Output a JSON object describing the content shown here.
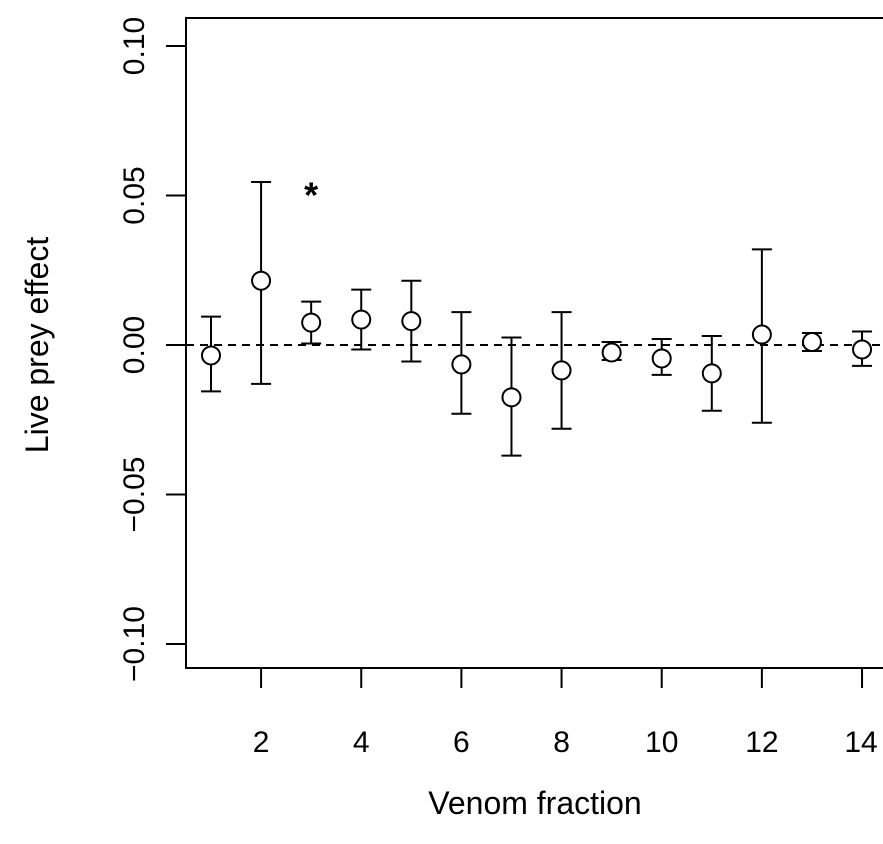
{
  "chart_data": {
    "type": "scatter",
    "title": "",
    "xlabel": "Venom fraction",
    "ylabel": "Live prey effect",
    "xlim": [
      1,
      14
    ],
    "ylim": [
      -0.1,
      0.1
    ],
    "x_ticks": [
      2,
      4,
      6,
      8,
      10,
      12,
      14
    ],
    "y_ticks": [
      -0.1,
      -0.05,
      0.0,
      0.05,
      0.1
    ],
    "x_tick_labels": [
      "2",
      "4",
      "6",
      "8",
      "10",
      "12",
      "14"
    ],
    "y_tick_labels": [
      "−0.10",
      "−0.05",
      "0.00",
      "0.05",
      "0.10"
    ],
    "reference_line": {
      "y": 0.0,
      "style": "dashed"
    },
    "grid": false,
    "points": [
      {
        "x": 1,
        "y": -0.0035,
        "lower": -0.0155,
        "upper": 0.0095
      },
      {
        "x": 2,
        "y": 0.0215,
        "lower": -0.013,
        "upper": 0.0545
      },
      {
        "x": 3,
        "y": 0.0075,
        "lower": 0.0005,
        "upper": 0.0145,
        "annotation": "*"
      },
      {
        "x": 4,
        "y": 0.0085,
        "lower": -0.0015,
        "upper": 0.0185
      },
      {
        "x": 5,
        "y": 0.008,
        "lower": -0.0055,
        "upper": 0.0215
      },
      {
        "x": 6,
        "y": -0.0065,
        "lower": -0.023,
        "upper": 0.011
      },
      {
        "x": 7,
        "y": -0.0175,
        "lower": -0.037,
        "upper": 0.0025
      },
      {
        "x": 8,
        "y": -0.0085,
        "lower": -0.028,
        "upper": 0.011
      },
      {
        "x": 9,
        "y": -0.0025,
        "lower": -0.005,
        "upper": 0.001
      },
      {
        "x": 10,
        "y": -0.0045,
        "lower": -0.01,
        "upper": 0.002
      },
      {
        "x": 11,
        "y": -0.0095,
        "lower": -0.022,
        "upper": 0.003
      },
      {
        "x": 12,
        "y": 0.0035,
        "lower": -0.026,
        "upper": 0.032
      },
      {
        "x": 13,
        "y": 0.001,
        "lower": -0.002,
        "upper": 0.004
      },
      {
        "x": 14,
        "y": -0.0015,
        "lower": -0.007,
        "upper": 0.0045
      }
    ]
  }
}
